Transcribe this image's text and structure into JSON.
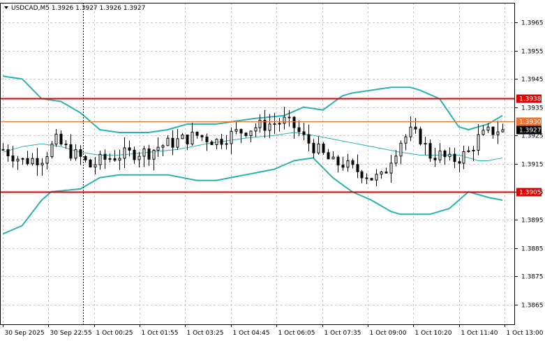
{
  "header": {
    "symbol": "USDCAD",
    "timeframe": "M5",
    "ohlc": "1.3926 1.3927 1.3926 1.3927",
    "title": "USDCAD,M5  1.3926 1.3927 1.3926 1.3927"
  },
  "colors": {
    "background": "#ffffff",
    "grid": "#c8c8c8",
    "candle": "#000000",
    "bands": "#2ab1b1",
    "resistance_line": "#e00000",
    "current_price_line": "#f07030",
    "price_label_red": "#e00000",
    "price_label_black": "#000000"
  },
  "chart_data": {
    "type": "candlestick",
    "symbol": "USDCAD",
    "timeframe": "M5",
    "ylim": [
      1.3858,
      1.3972
    ],
    "y_ticks": [
      "1.3965",
      "1.3955",
      "1.3945",
      "1.3935",
      "1.3925",
      "1.3915",
      "1.3905",
      "1.3895",
      "1.3885",
      "1.3875",
      "1.3865"
    ],
    "x_ticks": [
      "30 Sep 2025",
      "30 Sep 22:55",
      "1 Oct 00:25",
      "1 Oct 01:55",
      "1 Oct 03:25",
      "1 Oct 04:45",
      "1 Oct 06:05",
      "1 Oct 07:35",
      "1 Oct 09:00",
      "1 Oct 10:20",
      "1 Oct 11:40",
      "1 Oct 13:00"
    ],
    "horizontal_lines": [
      {
        "label": "1.3938",
        "value": 1.3938,
        "style": "red"
      },
      {
        "label": "1.3930",
        "value": 1.393,
        "style": "orange"
      },
      {
        "label": "1.3905",
        "value": 1.3905,
        "style": "red"
      }
    ],
    "current_price": {
      "label": "1.3927",
      "value": 1.3927
    },
    "close_path": [
      [
        0,
        1.392
      ],
      [
        4,
        1.3916
      ],
      [
        8,
        1.3917
      ],
      [
        11,
        1.3923
      ],
      [
        14,
        1.3919
      ],
      [
        16,
        1.3917
      ],
      [
        18,
        1.3914
      ],
      [
        20,
        1.3916
      ],
      [
        24,
        1.3918
      ],
      [
        28,
        1.3919
      ],
      [
        30,
        1.3919
      ],
      [
        32,
        1.3921
      ],
      [
        36,
        1.3923
      ],
      [
        40,
        1.3925
      ],
      [
        44,
        1.3923
      ],
      [
        48,
        1.3926
      ],
      [
        52,
        1.3928
      ],
      [
        55,
        1.3929
      ],
      [
        58,
        1.393
      ],
      [
        60,
        1.3928
      ],
      [
        62,
        1.3924
      ],
      [
        64,
        1.3921
      ],
      [
        66,
        1.3918
      ],
      [
        68,
        1.3915
      ],
      [
        70,
        1.3915
      ],
      [
        72,
        1.3913
      ],
      [
        74,
        1.3912
      ],
      [
        76,
        1.391
      ],
      [
        78,
        1.391
      ],
      [
        79,
        1.3913
      ],
      [
        80,
        1.3917
      ],
      [
        82,
        1.3923
      ],
      [
        84,
        1.3926
      ],
      [
        86,
        1.3924
      ],
      [
        88,
        1.3918
      ],
      [
        90,
        1.3918
      ],
      [
        92,
        1.3916
      ],
      [
        94,
        1.3917
      ],
      [
        96,
        1.3919
      ],
      [
        98,
        1.3924
      ],
      [
        100,
        1.3926
      ],
      [
        102,
        1.3927
      ],
      [
        103,
        1.3927
      ]
    ],
    "bollinger_upper": [
      [
        0,
        1.3946
      ],
      [
        4,
        1.3945
      ],
      [
        8,
        1.3938
      ],
      [
        12,
        1.3937
      ],
      [
        16,
        1.3933
      ],
      [
        20,
        1.3927
      ],
      [
        24,
        1.3926
      ],
      [
        30,
        1.3926
      ],
      [
        34,
        1.3927
      ],
      [
        38,
        1.3929
      ],
      [
        44,
        1.3929
      ],
      [
        52,
        1.3931
      ],
      [
        58,
        1.3932
      ],
      [
        62,
        1.3935
      ],
      [
        66,
        1.3934
      ],
      [
        70,
        1.3939
      ],
      [
        72,
        1.394
      ],
      [
        76,
        1.3941
      ],
      [
        80,
        1.3942
      ],
      [
        84,
        1.3942
      ],
      [
        86,
        1.3941
      ],
      [
        90,
        1.3938
      ],
      [
        94,
        1.3928
      ],
      [
        96,
        1.3927
      ],
      [
        100,
        1.3929
      ],
      [
        103,
        1.3932
      ]
    ],
    "bollinger_middle": [
      [
        0,
        1.3919
      ],
      [
        4,
        1.3921
      ],
      [
        8,
        1.3922
      ],
      [
        12,
        1.3921
      ],
      [
        16,
        1.3919
      ],
      [
        20,
        1.3918
      ],
      [
        24,
        1.3918
      ],
      [
        30,
        1.3919
      ],
      [
        36,
        1.392
      ],
      [
        42,
        1.3922
      ],
      [
        50,
        1.3924
      ],
      [
        56,
        1.3925
      ],
      [
        60,
        1.3926
      ],
      [
        64,
        1.3925
      ],
      [
        70,
        1.3923
      ],
      [
        76,
        1.3921
      ],
      [
        82,
        1.3919
      ],
      [
        86,
        1.3918
      ],
      [
        90,
        1.3918
      ],
      [
        94,
        1.3918
      ],
      [
        98,
        1.3916
      ],
      [
        100,
        1.3916
      ],
      [
        103,
        1.3917
      ]
    ],
    "bollinger_lower": [
      [
        0,
        1.389
      ],
      [
        4,
        1.3893
      ],
      [
        8,
        1.3902
      ],
      [
        10,
        1.3905
      ],
      [
        16,
        1.3906
      ],
      [
        20,
        1.391
      ],
      [
        24,
        1.3911
      ],
      [
        34,
        1.3911
      ],
      [
        40,
        1.3909
      ],
      [
        44,
        1.3909
      ],
      [
        50,
        1.3911
      ],
      [
        56,
        1.3913
      ],
      [
        60,
        1.3916
      ],
      [
        64,
        1.3917
      ],
      [
        68,
        1.391
      ],
      [
        72,
        1.3905
      ],
      [
        76,
        1.3902
      ],
      [
        80,
        1.3898
      ],
      [
        82,
        1.3897
      ],
      [
        88,
        1.3897
      ],
      [
        92,
        1.3899
      ],
      [
        94,
        1.3902
      ],
      [
        96,
        1.3905
      ],
      [
        100,
        1.3903
      ],
      [
        103,
        1.3902
      ]
    ],
    "time_index_range": [
      0,
      105
    ],
    "cursor_time_index": 16.5,
    "grid": true
  }
}
